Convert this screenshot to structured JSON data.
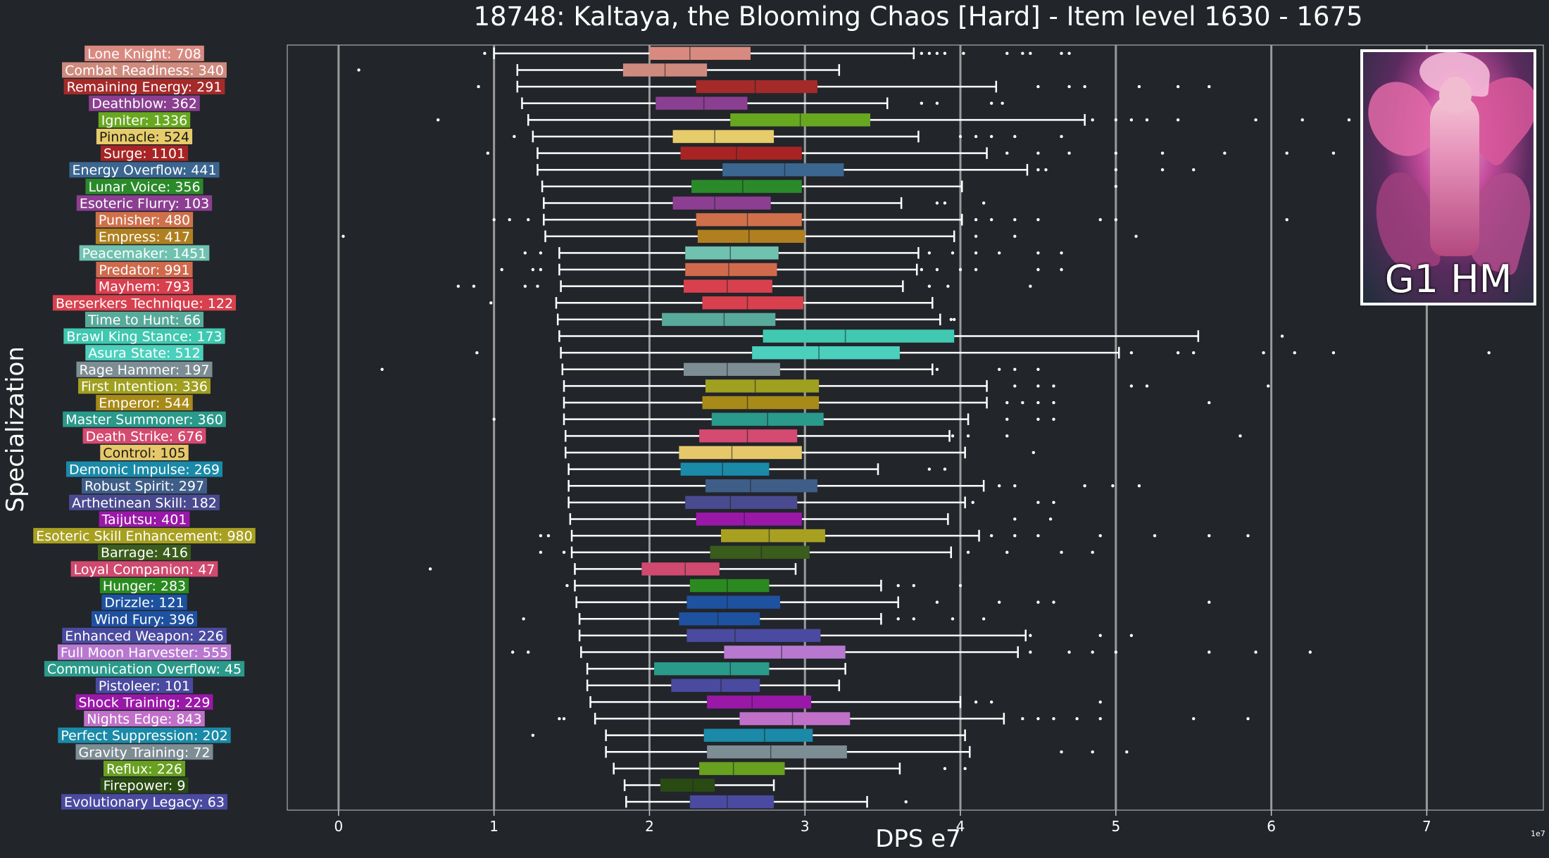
{
  "title": "18748: Kaltaya, the Blooming Chaos [Hard] - Item level 1630 - 1675",
  "ylabel": "Specialization",
  "xlabel": "DPS e7",
  "exponent": "1e7",
  "portrait": {
    "caption": "G1 HM",
    "icon": "boss-portrait-image"
  },
  "colors": {
    "background": "#22252a",
    "axes_border": "#c8c8c8",
    "gridline": "#9a9a9a",
    "text": "#ffffff"
  },
  "chart_data": {
    "type": "box",
    "orientation": "horizontal",
    "xlim": [
      -0.33,
      7.75
    ],
    "xticks": [
      0,
      1,
      2,
      3,
      4,
      5,
      6,
      7
    ],
    "grid": "vertical lines at x ticks",
    "units": "DPS (x1e7)",
    "series": [
      {
        "label": "Lone Knight: 708",
        "color": "#d98a80",
        "whisker_low": 1.0,
        "q1": 2.0,
        "median": 2.26,
        "q3": 2.65,
        "whisker_high": 3.7,
        "outliers": [
          0.94,
          3.75,
          3.8,
          3.85,
          3.9,
          4.02,
          4.3,
          4.4,
          4.45,
          4.65,
          4.7
        ]
      },
      {
        "label": "Combat Readiness: 340",
        "color": "#cf8a7e",
        "whisker_low": 1.15,
        "q1": 1.83,
        "median": 2.1,
        "q3": 2.37,
        "whisker_high": 3.22,
        "outliers": [
          0.13
        ]
      },
      {
        "label": "Remaining Energy: 291",
        "color": "#a52a2a",
        "whisker_low": 1.15,
        "q1": 2.3,
        "median": 2.68,
        "q3": 3.08,
        "whisker_high": 4.23,
        "outliers": [
          0.9,
          4.5,
          4.7,
          4.8,
          5.15,
          5.4,
          5.6
        ]
      },
      {
        "label": "Deathblow: 362",
        "color": "#8a3f90",
        "whisker_low": 1.18,
        "q1": 2.04,
        "median": 2.35,
        "q3": 2.63,
        "whisker_high": 3.53,
        "outliers": [
          3.75,
          3.85,
          4.2,
          4.27
        ]
      },
      {
        "label": "Igniter: 1336",
        "color": "#68a820",
        "whisker_low": 1.22,
        "q1": 2.52,
        "median": 2.97,
        "q3": 3.42,
        "whisker_high": 4.8,
        "outliers": [
          0.64,
          4.85,
          5.0,
          5.1,
          5.2,
          5.4,
          5.9,
          6.2,
          6.5
        ]
      },
      {
        "label": "Pinnacle: 524",
        "color": "#e6cc6a",
        "whisker_low": 1.25,
        "q1": 2.15,
        "median": 2.42,
        "q3": 2.8,
        "whisker_high": 3.73,
        "outliers": [
          1.13,
          4.0,
          4.1,
          4.2,
          4.35,
          4.65
        ]
      },
      {
        "label": "Surge: 1101",
        "color": "#a82424",
        "whisker_low": 1.28,
        "q1": 2.2,
        "median": 2.56,
        "q3": 2.98,
        "whisker_high": 4.17,
        "outliers": [
          0.96,
          4.3,
          4.5,
          4.7,
          5.0,
          5.3,
          5.7,
          6.1,
          6.4
        ]
      },
      {
        "label": "Energy Overflow: 441",
        "color": "#3a6690",
        "whisker_low": 1.28,
        "q1": 2.47,
        "median": 2.87,
        "q3": 3.25,
        "whisker_high": 4.43,
        "outliers": [
          4.5,
          4.55,
          5.0,
          5.3,
          5.5
        ]
      },
      {
        "label": "Lunar Voice: 356",
        "color": "#2a8a2a",
        "whisker_low": 1.31,
        "q1": 2.27,
        "median": 2.6,
        "q3": 2.98,
        "whisker_high": 4.01,
        "outliers": [
          5.0
        ]
      },
      {
        "label": "Esoteric Flurry: 103",
        "color": "#8c3f92",
        "whisker_low": 1.32,
        "q1": 2.15,
        "median": 2.42,
        "q3": 2.78,
        "whisker_high": 3.62,
        "outliers": [
          3.85,
          3.9,
          4.15
        ]
      },
      {
        "label": "Punisher: 480",
        "color": "#d0704a",
        "whisker_low": 1.32,
        "q1": 2.3,
        "median": 2.63,
        "q3": 2.98,
        "whisker_high": 4.01,
        "outliers": [
          1.0,
          1.1,
          1.22,
          4.1,
          4.2,
          4.35,
          4.5,
          4.9,
          5.0,
          6.1
        ]
      },
      {
        "label": "Empress: 417",
        "color": "#b08020",
        "whisker_low": 1.33,
        "q1": 2.31,
        "median": 2.64,
        "q3": 3.0,
        "whisker_high": 3.96,
        "outliers": [
          0.03,
          4.1,
          4.35,
          5.13
        ]
      },
      {
        "label": "Peacemaker: 1451",
        "color": "#70c2b0",
        "whisker_low": 1.42,
        "q1": 2.23,
        "median": 2.52,
        "q3": 2.83,
        "whisker_high": 3.73,
        "outliers": [
          1.2,
          1.3,
          3.8,
          3.95,
          4.1,
          4.25,
          4.5,
          4.65
        ]
      },
      {
        "label": "Predator: 991",
        "color": "#d06a4c",
        "whisker_low": 1.42,
        "q1": 2.23,
        "median": 2.51,
        "q3": 2.82,
        "whisker_high": 3.72,
        "outliers": [
          1.05,
          1.25,
          1.3,
          3.75,
          3.85,
          4.0,
          4.1,
          4.5,
          4.65
        ]
      },
      {
        "label": "Mayhem: 793",
        "color": "#d8404e",
        "whisker_low": 1.43,
        "q1": 2.22,
        "median": 2.5,
        "q3": 2.79,
        "whisker_high": 3.63,
        "outliers": [
          0.77,
          0.87,
          1.2,
          1.28,
          3.8,
          3.92,
          4.45
        ]
      },
      {
        "label": "Berserkers Technique: 122",
        "color": "#d8404e",
        "whisker_low": 1.4,
        "q1": 2.34,
        "median": 2.63,
        "q3": 2.99,
        "whisker_high": 3.82,
        "outliers": [
          0.98
        ]
      },
      {
        "label": "Time to Hunt: 66",
        "color": "#58aa9a",
        "whisker_low": 1.41,
        "q1": 2.08,
        "median": 2.48,
        "q3": 2.81,
        "whisker_high": 3.87,
        "outliers": [
          3.94,
          3.96
        ]
      },
      {
        "label": "Brawl King Stance: 173",
        "color": "#40c8b0",
        "whisker_low": 1.42,
        "q1": 2.73,
        "median": 3.26,
        "q3": 3.96,
        "whisker_high": 5.53,
        "outliers": [
          6.07
        ]
      },
      {
        "label": "Asura State: 512",
        "color": "#4ad0bc",
        "whisker_low": 1.43,
        "q1": 2.66,
        "median": 3.09,
        "q3": 3.61,
        "whisker_high": 5.02,
        "outliers": [
          0.89,
          5.1,
          5.4,
          5.5,
          5.95,
          6.15,
          6.4,
          7.4
        ]
      },
      {
        "label": "Rage Hammer: 197",
        "color": "#7d8d94",
        "whisker_low": 1.44,
        "q1": 2.22,
        "median": 2.5,
        "q3": 2.84,
        "whisker_high": 3.82,
        "outliers": [
          0.28,
          3.85,
          4.25,
          4.35,
          4.5
        ]
      },
      {
        "label": "First Intention: 336",
        "color": "#a0a020",
        "whisker_low": 1.45,
        "q1": 2.36,
        "median": 2.68,
        "q3": 3.09,
        "whisker_high": 4.17,
        "outliers": [
          4.35,
          4.5,
          4.6,
          5.1,
          5.2,
          5.98
        ]
      },
      {
        "label": "Emperor: 544",
        "color": "#a88a18",
        "whisker_low": 1.45,
        "q1": 2.34,
        "median": 2.63,
        "q3": 3.09,
        "whisker_high": 4.17,
        "outliers": [
          4.3,
          4.4,
          4.5,
          4.6,
          5.6
        ]
      },
      {
        "label": "Master Summoner: 360",
        "color": "#2a9a8a",
        "whisker_low": 1.45,
        "q1": 2.4,
        "median": 2.76,
        "q3": 3.12,
        "whisker_high": 4.05,
        "outliers": [
          1.0,
          4.3,
          4.5,
          4.6
        ]
      },
      {
        "label": "Death Strike: 676",
        "color": "#d44a70",
        "whisker_low": 1.46,
        "q1": 2.32,
        "median": 2.63,
        "q3": 2.95,
        "whisker_high": 3.93,
        "outliers": [
          3.95,
          4.05,
          4.3,
          5.8
        ]
      },
      {
        "label": "Control: 105",
        "color": "#e6c86a",
        "whisker_low": 1.46,
        "q1": 2.19,
        "median": 2.53,
        "q3": 2.98,
        "whisker_high": 4.03,
        "outliers": [
          4.47
        ]
      },
      {
        "label": "Demonic Impulse: 269",
        "color": "#1a8aa8",
        "whisker_low": 1.48,
        "q1": 2.2,
        "median": 2.47,
        "q3": 2.77,
        "whisker_high": 3.47,
        "outliers": [
          3.8,
          3.9
        ]
      },
      {
        "label": "Robust Spirit: 297",
        "color": "#3e5e88",
        "whisker_low": 1.48,
        "q1": 2.36,
        "median": 2.65,
        "q3": 3.08,
        "whisker_high": 4.15,
        "outliers": [
          4.25,
          4.35,
          4.8,
          4.98,
          5.15
        ]
      },
      {
        "label": "Arthetinean Skill: 182",
        "color": "#4a4a90",
        "whisker_low": 1.48,
        "q1": 2.23,
        "median": 2.52,
        "q3": 2.95,
        "whisker_high": 4.03,
        "outliers": [
          4.08,
          4.5,
          4.6
        ]
      },
      {
        "label": "Taijutsu: 401",
        "color": "#9a18a8",
        "whisker_low": 1.49,
        "q1": 2.3,
        "median": 2.61,
        "q3": 2.98,
        "whisker_high": 3.92,
        "outliers": [
          4.35,
          4.58
        ]
      },
      {
        "label": "Esoteric Skill Enhancement: 980",
        "color": "#a8a020",
        "whisker_low": 1.5,
        "q1": 2.46,
        "median": 2.77,
        "q3": 3.13,
        "whisker_high": 4.12,
        "outliers": [
          1.3,
          1.35,
          4.2,
          4.35,
          4.5,
          4.9,
          5.25,
          5.6,
          5.85
        ]
      },
      {
        "label": "Barrage: 416",
        "color": "#3a5c1c",
        "whisker_low": 1.5,
        "q1": 2.39,
        "median": 2.72,
        "q3": 3.03,
        "whisker_high": 3.94,
        "outliers": [
          1.3,
          1.45,
          4.05,
          4.3,
          4.65,
          4.85
        ]
      },
      {
        "label": "Loyal Companion: 47",
        "color": "#d04a70",
        "whisker_low": 1.52,
        "q1": 1.95,
        "median": 2.23,
        "q3": 2.45,
        "whisker_high": 2.94,
        "outliers": [
          0.59
        ]
      },
      {
        "label": "Hunger: 283",
        "color": "#2a8a20",
        "whisker_low": 1.52,
        "q1": 2.26,
        "median": 2.5,
        "q3": 2.77,
        "whisker_high": 3.49,
        "outliers": [
          1.47,
          3.6,
          3.7,
          4.0
        ]
      },
      {
        "label": "Drizzle: 121",
        "color": "#1e52a0",
        "whisker_low": 1.53,
        "q1": 2.24,
        "median": 2.5,
        "q3": 2.84,
        "whisker_high": 3.6,
        "outliers": [
          3.85,
          4.25,
          4.5,
          4.6,
          5.6
        ]
      },
      {
        "label": "Wind Fury: 396",
        "color": "#1e52a0",
        "whisker_low": 1.55,
        "q1": 2.19,
        "median": 2.44,
        "q3": 2.71,
        "whisker_high": 3.49,
        "outliers": [
          1.19,
          3.6,
          3.7,
          3.95,
          4.15
        ]
      },
      {
        "label": "Enhanced Weapon: 226",
        "color": "#4a4aa0",
        "whisker_low": 1.55,
        "q1": 2.24,
        "median": 2.55,
        "q3": 3.1,
        "whisker_high": 4.42,
        "outliers": [
          4.45,
          4.9,
          5.1
        ]
      },
      {
        "label": "Full Moon Harvester: 555",
        "color": "#b878d0",
        "whisker_low": 1.56,
        "q1": 2.48,
        "median": 2.85,
        "q3": 3.26,
        "whisker_high": 4.37,
        "outliers": [
          1.12,
          1.22,
          4.45,
          4.7,
          4.85,
          5.0,
          5.6,
          5.9,
          6.25
        ]
      },
      {
        "label": "Communication Overflow: 45",
        "color": "#2a9a8a",
        "whisker_low": 1.6,
        "q1": 2.03,
        "median": 2.52,
        "q3": 2.77,
        "whisker_high": 3.26,
        "outliers": []
      },
      {
        "label": "Pistoleer: 101",
        "color": "#4a4aa0",
        "whisker_low": 1.6,
        "q1": 2.14,
        "median": 2.46,
        "q3": 2.71,
        "whisker_high": 3.22,
        "outliers": []
      },
      {
        "label": "Shock Training: 229",
        "color": "#9a18a8",
        "whisker_low": 1.62,
        "q1": 2.37,
        "median": 2.66,
        "q3": 3.04,
        "whisker_high": 4.0,
        "outliers": [
          4.1,
          4.2,
          4.9
        ]
      },
      {
        "label": "Nights Edge: 843",
        "color": "#c070c8",
        "whisker_low": 1.65,
        "q1": 2.58,
        "median": 2.92,
        "q3": 3.29,
        "whisker_high": 4.28,
        "outliers": [
          1.42,
          1.45,
          4.4,
          4.5,
          4.6,
          4.75,
          4.9,
          5.5,
          5.85
        ]
      },
      {
        "label": "Perfect Suppression: 202",
        "color": "#1a8aa8",
        "whisker_low": 1.72,
        "q1": 2.35,
        "median": 2.74,
        "q3": 3.05,
        "whisker_high": 4.03,
        "outliers": [
          1.25
        ]
      },
      {
        "label": "Gravity Training: 72",
        "color": "#7d8d94",
        "whisker_low": 1.72,
        "q1": 2.37,
        "median": 2.78,
        "q3": 3.27,
        "whisker_high": 4.06,
        "outliers": [
          4.65,
          4.85,
          5.07
        ]
      },
      {
        "label": "Reflux: 226",
        "color": "#68a020",
        "whisker_low": 1.77,
        "q1": 2.32,
        "median": 2.54,
        "q3": 2.87,
        "whisker_high": 3.61,
        "outliers": [
          3.9,
          4.03
        ]
      },
      {
        "label": "Firepower: 9",
        "color": "#2a4a14",
        "whisker_low": 1.84,
        "q1": 2.07,
        "median": 2.28,
        "q3": 2.42,
        "whisker_high": 2.8,
        "outliers": []
      },
      {
        "label": "Evolutionary Legacy: 63",
        "color": "#4a4aa0",
        "whisker_low": 1.85,
        "q1": 2.26,
        "median": 2.5,
        "q3": 2.8,
        "whisker_high": 3.4,
        "outliers": [
          3.65
        ]
      }
    ]
  }
}
